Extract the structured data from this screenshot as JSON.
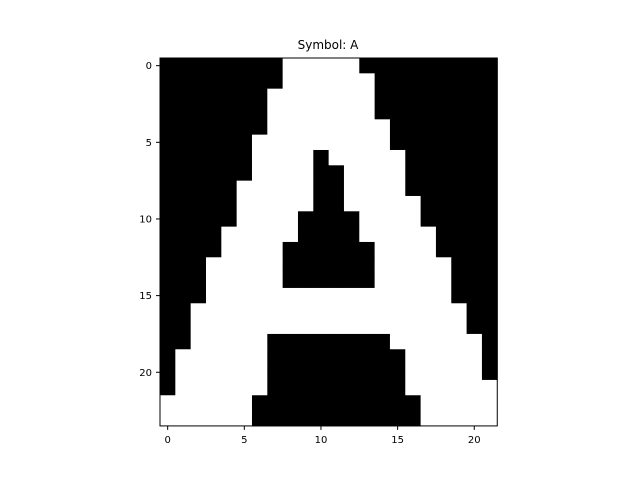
{
  "chart_data": {
    "type": "heatmap",
    "title": "Symbol: A",
    "xlabel": "",
    "ylabel": "",
    "colormap": "gray",
    "colors": {
      "zero": "#000000",
      "one": "#ffffff",
      "axis": "#000000",
      "background": "#ffffff"
    },
    "shape": [
      24,
      22
    ],
    "x_ticks": [
      0,
      5,
      10,
      15,
      20
    ],
    "y_ticks": [
      0,
      5,
      10,
      15,
      20
    ],
    "grid": false,
    "rows": [
      "0000000011111000000000",
      "0000000011111100000000",
      "0000000111111100000000",
      "0000000111111100000000",
      "0000000111111110000000",
      "0000001111111110000000",
      "0000001111011111000000",
      "0000001111001111000000",
      "0000011111001111000000",
      "0000011111001111100000",
      "0000011110000111100000",
      "0000111110000111110000",
      "0000111100000011110000",
      "0001111100000011111000",
      "0001111100000011111000",
      "0001111111111111111000",
      "0011111111111111111100",
      "0011111111111111111100",
      "0011111000000001111110",
      "0111111000000000111110",
      "0111111000000000111110",
      "0111111000000000111111",
      "1111110000000000011111",
      "1111110000000000011111"
    ]
  }
}
